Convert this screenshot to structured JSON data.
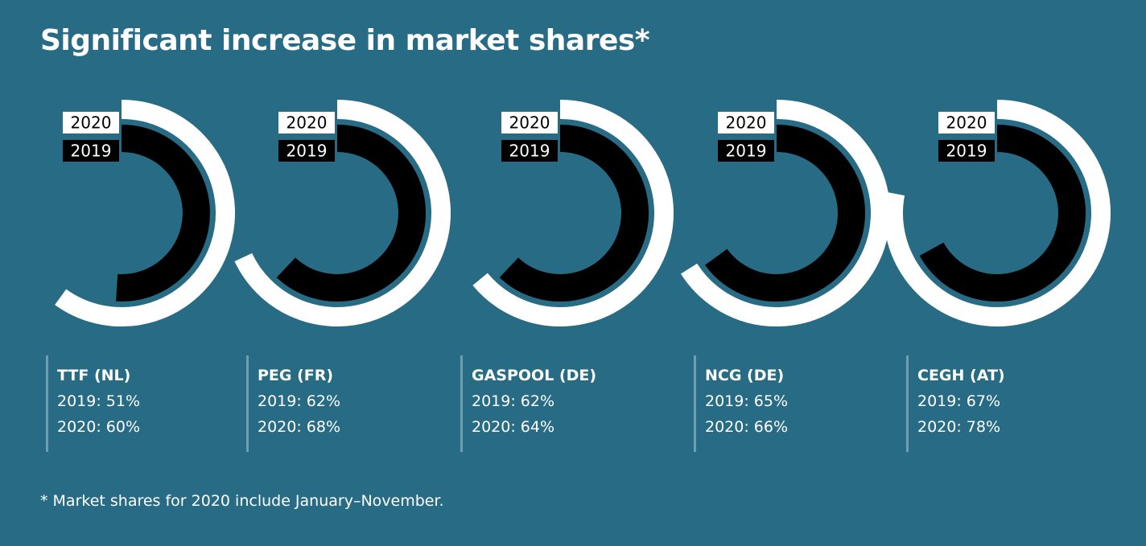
{
  "title": "Significant increase in market shares*",
  "footnote": "* Market shares for 2020 include January–November.",
  "colors": {
    "background": "#276b85",
    "outer_ring_2020": "#ffffff",
    "inner_ring_2019": "#000000",
    "divider": "#6f9db3"
  },
  "chart_data": {
    "type": "radial-bar",
    "unit": "%",
    "series_labels": [
      "2020",
      "2019"
    ],
    "markets": [
      {
        "name": "TTF (NL)",
        "y2019": 51,
        "y2020": 60,
        "label_2019": "2019: 51%",
        "label_2020": "2020: 60%"
      },
      {
        "name": "PEG (FR)",
        "y2019": 62,
        "y2020": 68,
        "label_2019": "2019: 62%",
        "label_2020": "2020: 68%"
      },
      {
        "name": "GASPOOL (DE)",
        "y2019": 62,
        "y2020": 64,
        "label_2019": "2019: 62%",
        "label_2020": "2020: 64%"
      },
      {
        "name": "NCG (DE)",
        "y2019": 65,
        "y2020": 66,
        "label_2019": "2019: 65%",
        "label_2020": "2020: 66%"
      },
      {
        "name": "CEGH (AT)",
        "y2019": 67,
        "y2020": 78,
        "label_2019": "2019: 67%",
        "label_2020": "2020: 78%"
      }
    ]
  }
}
